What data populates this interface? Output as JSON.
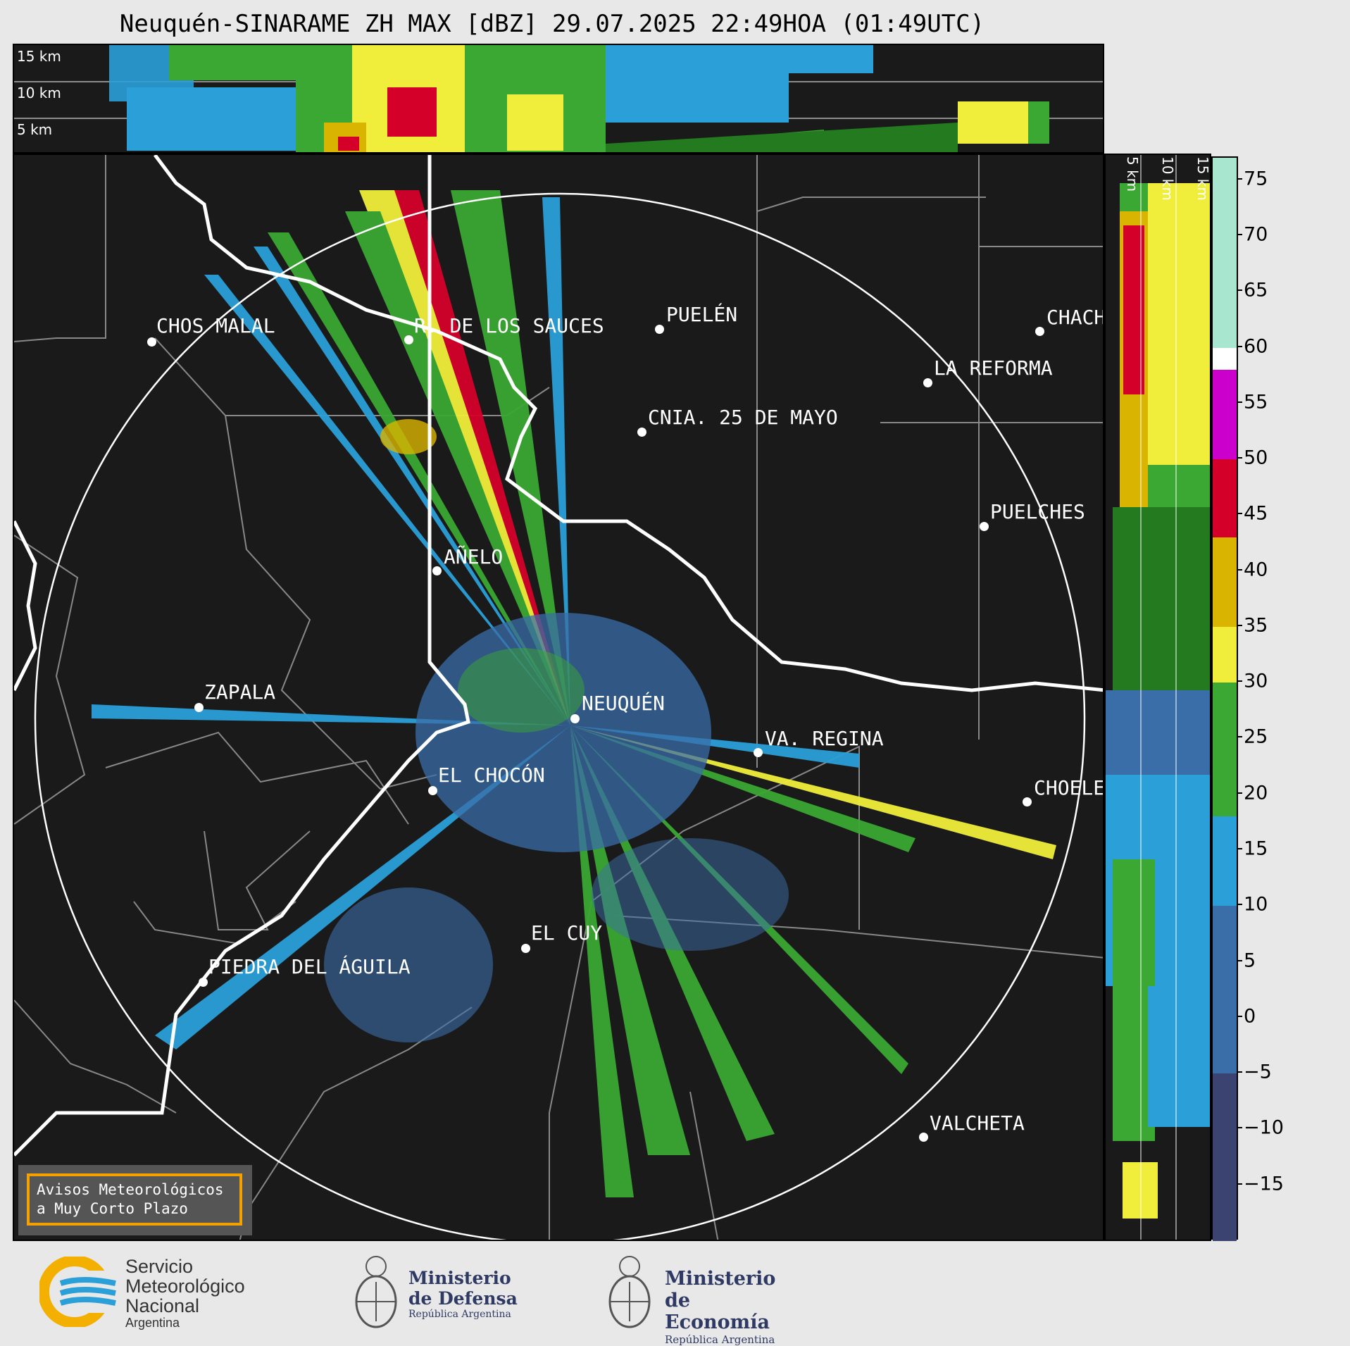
{
  "title": "Neuquén-SINARAME ZH MAX [dBZ] 29.07.2025 22:49HOA (01:49UTC)",
  "top_panel": {
    "height_labels": [
      "15 km",
      "10 km",
      "5 km"
    ]
  },
  "side_panel": {
    "height_labels": [
      "5 km",
      "10 km",
      "15 km"
    ]
  },
  "colorbar": {
    "ticks": [
      "75",
      "70",
      "65",
      "60",
      "55",
      "50",
      "45",
      "40",
      "35",
      "30",
      "25",
      "20",
      "15",
      "10",
      "5",
      "0",
      "−5",
      "−10",
      "−15"
    ],
    "tick_values": [
      75,
      70,
      65,
      60,
      55,
      50,
      45,
      40,
      35,
      30,
      25,
      20,
      15,
      10,
      5,
      0,
      -5,
      -10,
      -15
    ],
    "range": [
      -20,
      77
    ],
    "colors": [
      {
        "from": 60,
        "to": 77,
        "color": "#a8e6cf"
      },
      {
        "from": 58,
        "to": 60,
        "color": "#ffffff"
      },
      {
        "from": 50,
        "to": 58,
        "color": "#cc00cc"
      },
      {
        "from": 43,
        "to": 50,
        "color": "#d4002a"
      },
      {
        "from": 35,
        "to": 43,
        "color": "#d9b400"
      },
      {
        "from": 30,
        "to": 35,
        "color": "#f0ee3a"
      },
      {
        "from": 18,
        "to": 30,
        "color": "#3aa832"
      },
      {
        "from": 10,
        "to": 18,
        "color": "#2a9fd8"
      },
      {
        "from": -5,
        "to": 10,
        "color": "#3a6ea8"
      },
      {
        "from": -20,
        "to": -5,
        "color": "#3b4470"
      }
    ]
  },
  "cities": [
    {
      "name": "CHOS MALAL"
    },
    {
      "name": "R. DE LOS SAUCES"
    },
    {
      "name": "PUELÉN"
    },
    {
      "name": "CHACH"
    },
    {
      "name": "LA REFORMA"
    },
    {
      "name": "CNIA. 25 DE MAYO"
    },
    {
      "name": "PUELCHES"
    },
    {
      "name": "AÑELO"
    },
    {
      "name": "ZAPALA"
    },
    {
      "name": "NEUQUÉN"
    },
    {
      "name": "VA. REGINA"
    },
    {
      "name": "EL CHOCÓN"
    },
    {
      "name": "CHOELE"
    },
    {
      "name": "EL CUY"
    },
    {
      "name": "PIEDRA DEL ÁGUILA"
    },
    {
      "name": "VALCHETA"
    }
  ],
  "warning_box": {
    "line1": "Avisos Meteorológicos",
    "line2": "a Muy Corto Plazo"
  },
  "logos": {
    "smn": [
      "Servicio",
      "Meteorológico",
      "Nacional",
      "Argentina"
    ],
    "defensa": [
      "Ministerio",
      "de Defensa",
      "República Argentina"
    ],
    "economia": [
      "Ministerio",
      "de Economía",
      "República Argentina"
    ]
  },
  "colors": {
    "background": "#1a1a1a",
    "border": "#ffffff",
    "accent": "#f4a100"
  }
}
